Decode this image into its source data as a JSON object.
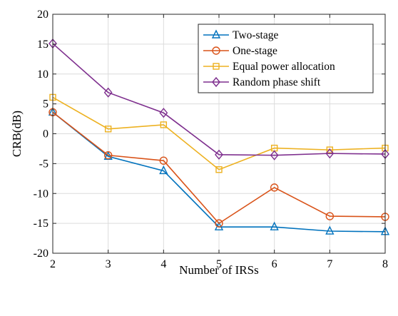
{
  "chart_data": {
    "type": "line",
    "xlabel": "Number of IRSs",
    "ylabel": "CRB(dB)",
    "xlim": [
      2,
      8
    ],
    "ylim": [
      -20,
      20
    ],
    "xticks": [
      2,
      3,
      4,
      5,
      6,
      7,
      8
    ],
    "yticks": [
      -20,
      -15,
      -10,
      -5,
      0,
      5,
      10,
      15,
      20
    ],
    "x": [
      2,
      3,
      4,
      5,
      6,
      7,
      8
    ],
    "grid": true,
    "legend_position": "top-right",
    "series": [
      {
        "name": "Two-stage",
        "color": "#0072BD",
        "marker": "triangle",
        "values": [
          3.6,
          -3.8,
          -6.2,
          -15.6,
          -15.6,
          -16.3,
          -16.4
        ]
      },
      {
        "name": "One-stage",
        "color": "#D95319",
        "marker": "circle",
        "values": [
          3.6,
          -3.6,
          -4.5,
          -15.0,
          -9.0,
          -13.8,
          -13.9
        ]
      },
      {
        "name": "Equal power allocation",
        "color": "#EDB120",
        "marker": "square",
        "values": [
          6.1,
          0.8,
          1.5,
          -6.0,
          -2.4,
          -2.7,
          -2.4
        ]
      },
      {
        "name": "Random phase shift",
        "color": "#7E2F8E",
        "marker": "diamond",
        "values": [
          15.1,
          6.9,
          3.5,
          -3.5,
          -3.6,
          -3.3,
          -3.4
        ]
      }
    ]
  }
}
